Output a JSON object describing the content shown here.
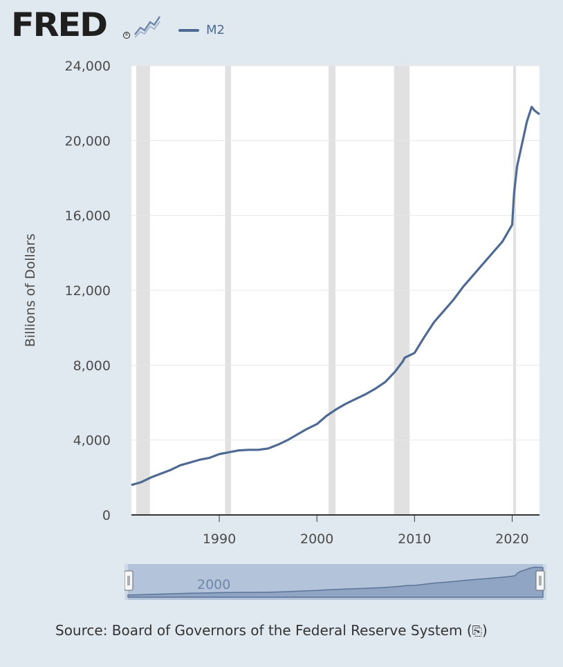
{
  "header": {
    "logo_text": "FRED",
    "logo_icon": "trend-line-icon",
    "registered_mark": "®"
  },
  "legend": {
    "series_label": "M2",
    "series_color": "#4e6a93"
  },
  "navigator": {
    "label": "2000"
  },
  "source": {
    "text": "Source: Board of Governors of the Federal Reserve System (",
    "icon": "share-icon",
    "icon_text": "⎘",
    "close": ")"
  },
  "colors": {
    "background": "#e1e9f0",
    "plot_bg": "#ffffff",
    "recession": "#e1e1e1",
    "line": "#4e6a93"
  },
  "chart_data": {
    "type": "line",
    "title": "",
    "xlabel": "",
    "ylabel": "Billions of Dollars",
    "xlim": [
      1981,
      2022.8
    ],
    "ylim": [
      0,
      24000
    ],
    "y_ticks": [
      0,
      4000,
      8000,
      12000,
      16000,
      20000,
      24000
    ],
    "y_tick_labels": [
      "0",
      "4,000",
      "8,000",
      "12,000",
      "16,000",
      "20,000",
      "24,000"
    ],
    "x_ticks": [
      1990,
      2000,
      2010,
      2020
    ],
    "x_tick_labels": [
      "1990",
      "2000",
      "2010",
      "2020"
    ],
    "grid": "horizontal",
    "recessions": [
      [
        1981.5,
        1982.9
      ],
      [
        1990.6,
        1991.2
      ],
      [
        2001.2,
        2001.9
      ],
      [
        2007.9,
        2009.5
      ],
      [
        2020.1,
        2020.4
      ]
    ],
    "series": [
      {
        "name": "M2",
        "x": [
          1981,
          1982,
          1983,
          1984,
          1985,
          1986,
          1987,
          1988,
          1989,
          1990,
          1991,
          1992,
          1993,
          1994,
          1995,
          1996,
          1997,
          1998,
          1999,
          2000,
          2001,
          2002,
          2003,
          2004,
          2005,
          2006,
          2007,
          2008,
          2008.8,
          2009,
          2010,
          2011,
          2012,
          2013,
          2014,
          2015,
          2016,
          2017,
          2018,
          2019,
          2020,
          2020.2,
          2020.5,
          2021,
          2021.5,
          2022,
          2022.3,
          2022.8
        ],
        "y": [
          1600,
          1750,
          2000,
          2200,
          2400,
          2650,
          2800,
          2950,
          3050,
          3250,
          3350,
          3450,
          3480,
          3480,
          3550,
          3750,
          4000,
          4300,
          4600,
          4850,
          5300,
          5650,
          5950,
          6200,
          6450,
          6750,
          7100,
          7650,
          8200,
          8400,
          8650,
          9500,
          10300,
          10900,
          11500,
          12200,
          12800,
          13400,
          14000,
          14600,
          15500,
          17200,
          18600,
          19800,
          21000,
          21800,
          21600,
          21400
        ]
      }
    ]
  }
}
